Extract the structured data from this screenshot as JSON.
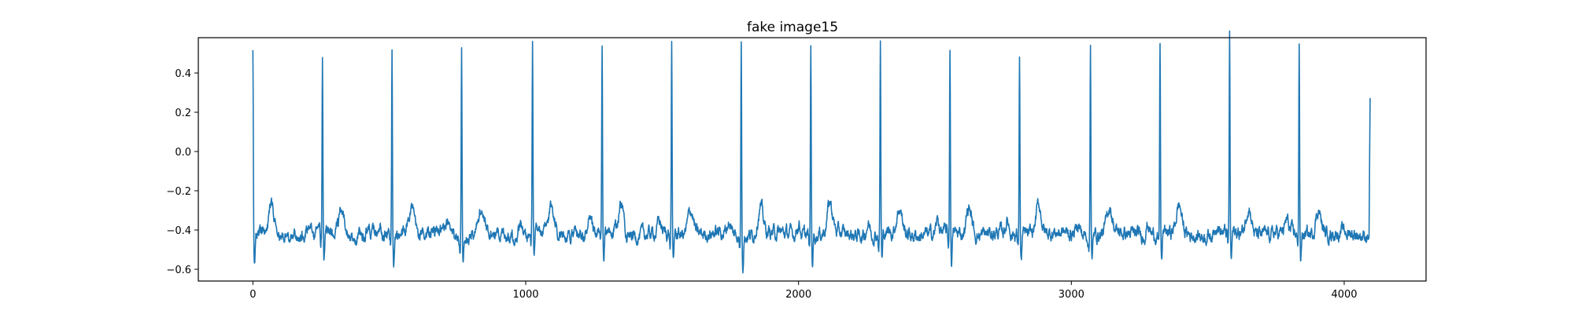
{
  "chart_data": {
    "type": "line",
    "title": "fake image15",
    "xlabel": "",
    "ylabel": "",
    "xlim": [
      -200,
      4300
    ],
    "ylim": [
      -0.66,
      0.58
    ],
    "xticks": [
      0,
      1000,
      2000,
      3000,
      4000
    ],
    "xtick_labels": [
      "0",
      "1000",
      "2000",
      "3000",
      "4000"
    ],
    "yticks": [
      -0.6,
      -0.4,
      -0.2,
      0.0,
      0.2,
      0.4
    ],
    "ytick_labels": [
      "−0.6",
      "−0.4",
      "−0.2",
      "0.0",
      "0.2",
      "0.4"
    ],
    "grid": false,
    "legend": "none",
    "n_points": 4096,
    "beats": [
      {
        "x": 0,
        "peak": 0.46
      },
      {
        "x": 255,
        "peak": 0.46
      },
      {
        "x": 510,
        "peak": 0.45
      },
      {
        "x": 765,
        "peak": 0.45
      },
      {
        "x": 1025,
        "peak": 0.51
      },
      {
        "x": 1280,
        "peak": 0.47
      },
      {
        "x": 1535,
        "peak": 0.48
      },
      {
        "x": 1790,
        "peak": 0.52
      },
      {
        "x": 2045,
        "peak": 0.49
      },
      {
        "x": 2300,
        "peak": 0.5
      },
      {
        "x": 2555,
        "peak": 0.48
      },
      {
        "x": 2810,
        "peak": 0.46
      },
      {
        "x": 3070,
        "peak": 0.53
      },
      {
        "x": 3325,
        "peak": 0.5
      },
      {
        "x": 3580,
        "peak": 0.54
      },
      {
        "x": 3835,
        "peak": 0.52
      }
    ],
    "end_point": {
      "x": 4095,
      "y": 0.27
    },
    "baseline": -0.42,
    "series": [
      {
        "color": "#1f77b4"
      }
    ]
  }
}
